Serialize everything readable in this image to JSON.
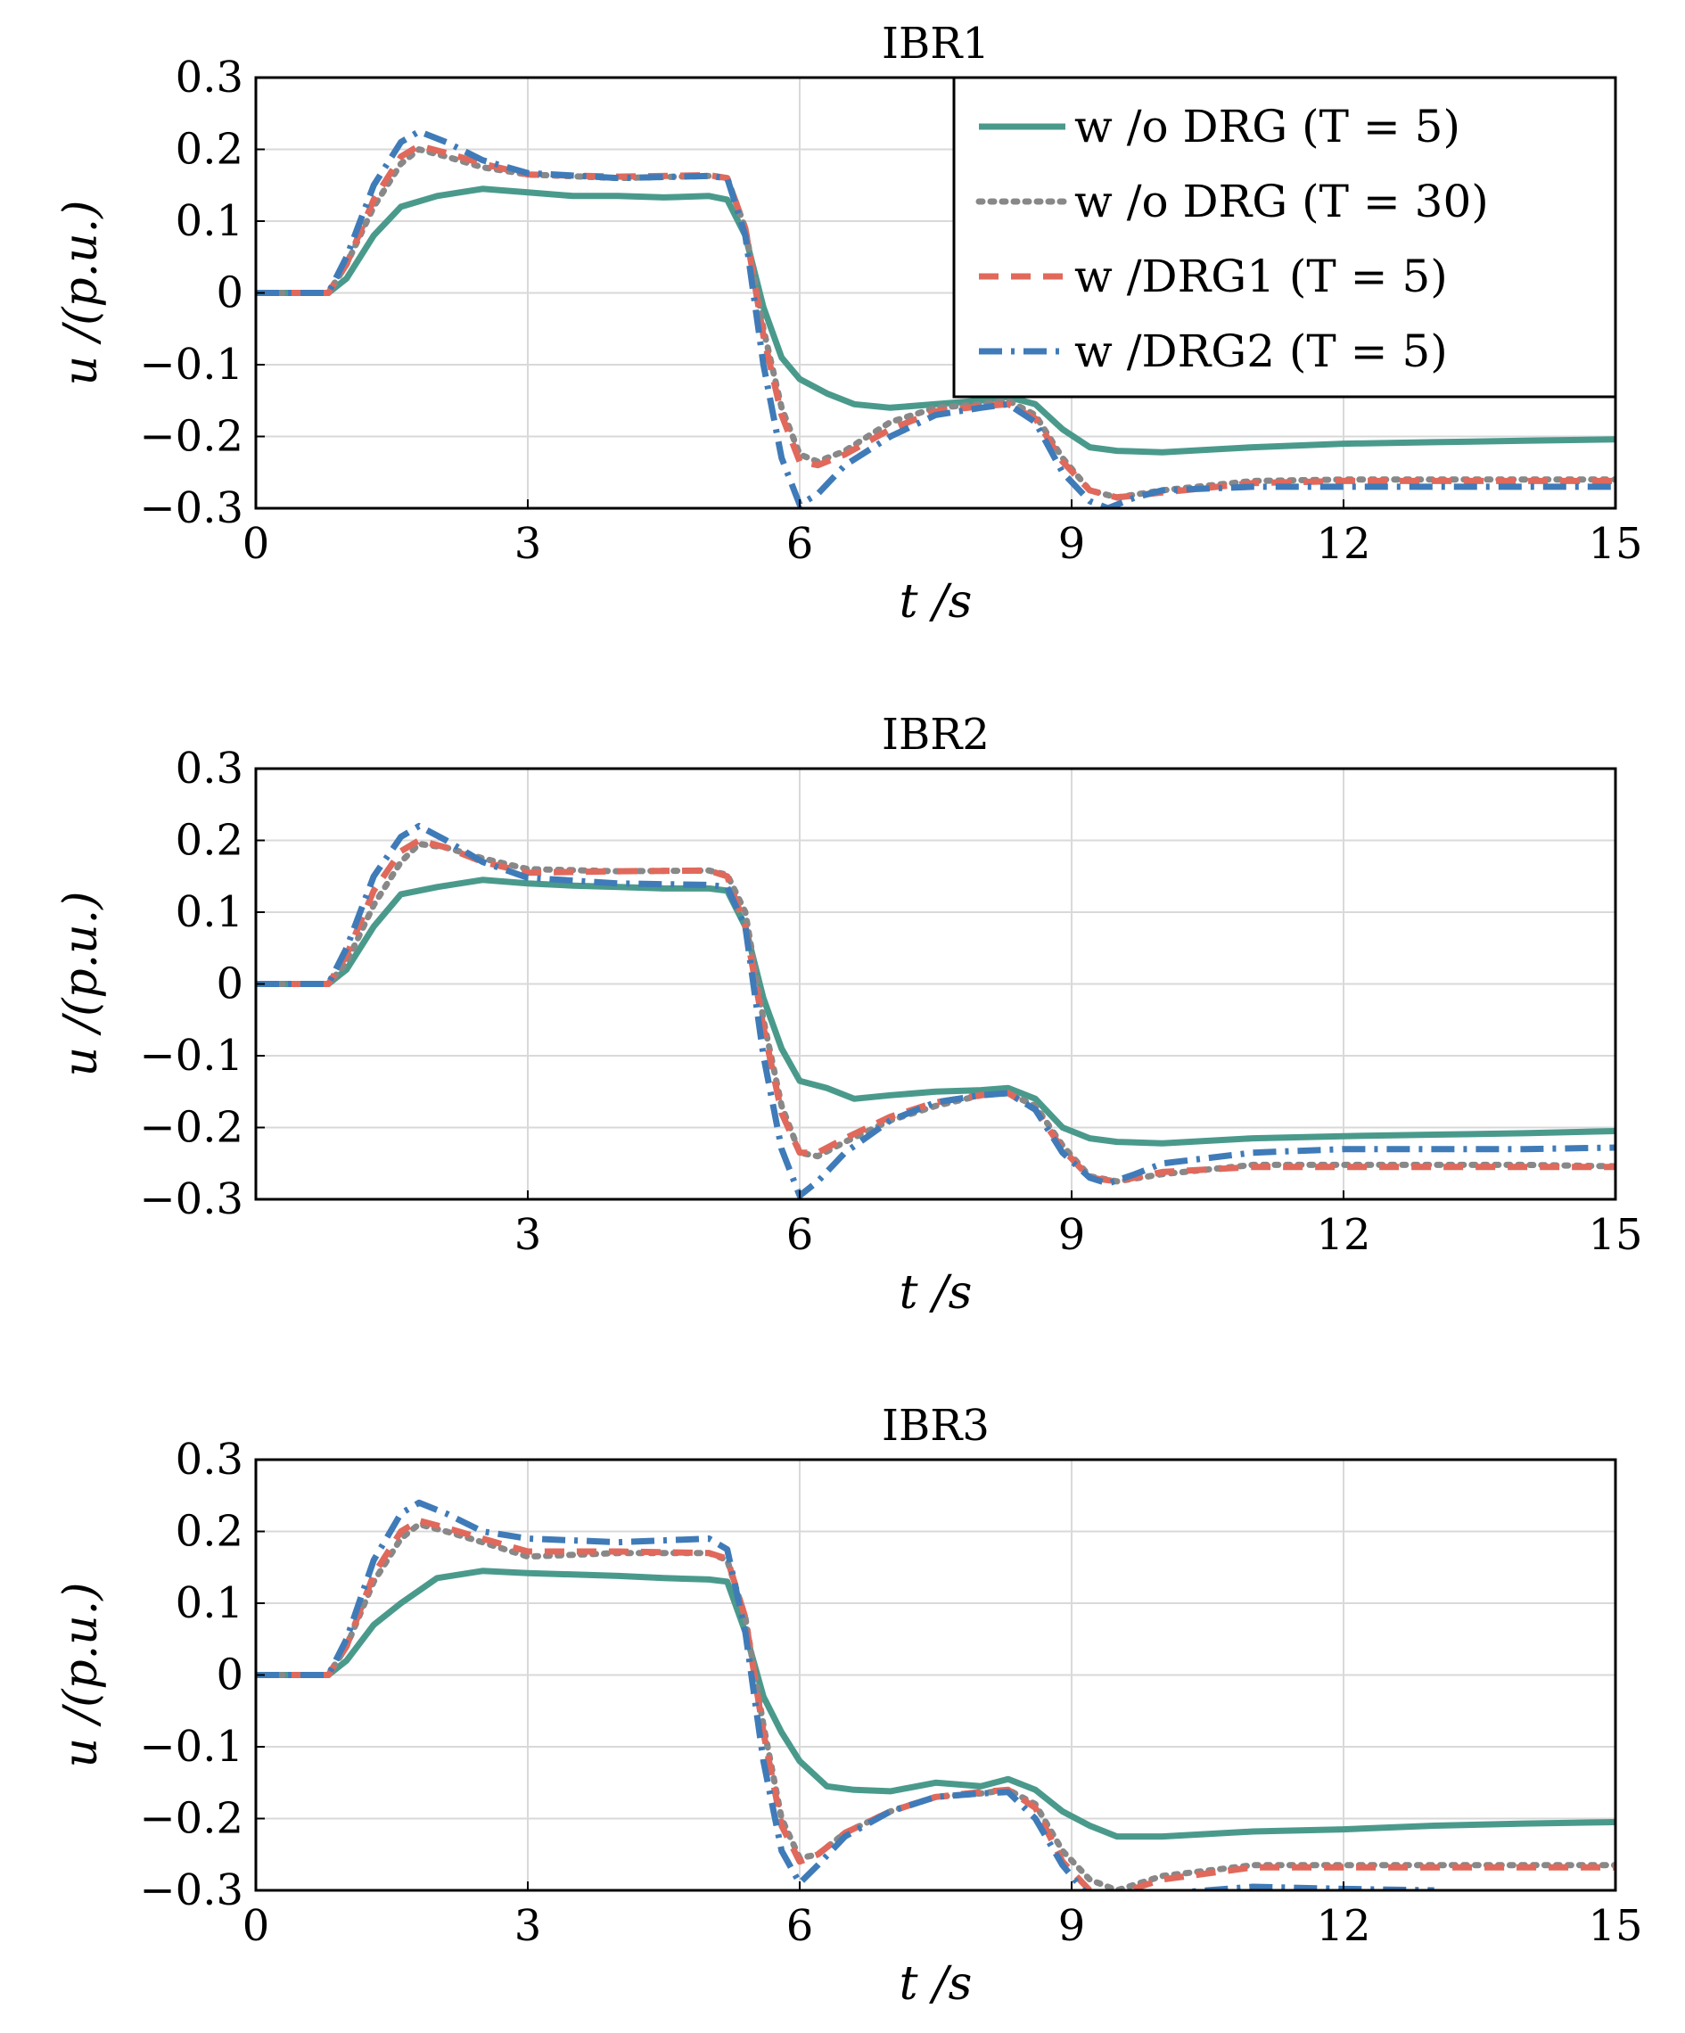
{
  "legend": {
    "items": [
      {
        "label": "w /o DRG (T = 5)",
        "color": "#4a9a8c",
        "style": "solid"
      },
      {
        "label": "w /o DRG (T = 30)",
        "color": "#888888",
        "style": "dotted"
      },
      {
        "label": "w /DRG1 (T = 5)",
        "color": "#e0695c",
        "style": "dashed"
      },
      {
        "label": "w /DRG2 (T = 5)",
        "color": "#3f7bb8",
        "style": "dashdot"
      }
    ],
    "placement": "top-right of first panel"
  },
  "chart_data": [
    {
      "type": "line",
      "title": "IBR1",
      "xlabel": "t /s",
      "ylabel": "u /(p.u.)",
      "xlim": [
        0,
        15
      ],
      "ylim": [
        -0.3,
        0.3
      ],
      "xticks": [
        "0",
        "3",
        "6",
        "9",
        "12",
        "15"
      ],
      "yticks": [
        "0.3",
        "0.2",
        "0.1",
        "0",
        "−0.1",
        "−0.2",
        "−0.3"
      ],
      "grid": true,
      "series": [
        {
          "name": "w /o DRG (T = 5)",
          "color": "#4a9a8c",
          "style": "solid",
          "x": [
            0,
            0.8,
            1.0,
            1.3,
            1.6,
            2.0,
            2.5,
            3.0,
            3.5,
            4.0,
            4.5,
            5.0,
            5.2,
            5.4,
            5.6,
            5.8,
            6.0,
            6.3,
            6.6,
            7.0,
            7.5,
            8.0,
            8.3,
            8.6,
            8.9,
            9.2,
            9.5,
            10.0,
            11.0,
            12.0,
            13.0,
            14.0,
            15.0
          ],
          "y": [
            0,
            0,
            0.02,
            0.08,
            0.12,
            0.135,
            0.145,
            0.14,
            0.135,
            0.135,
            0.133,
            0.135,
            0.13,
            0.08,
            -0.02,
            -0.09,
            -0.12,
            -0.14,
            -0.155,
            -0.16,
            -0.155,
            -0.15,
            -0.145,
            -0.155,
            -0.19,
            -0.215,
            -0.22,
            -0.222,
            -0.215,
            -0.21,
            -0.208,
            -0.206,
            -0.204
          ]
        },
        {
          "name": "w /o DRG (T = 30)",
          "color": "#888888",
          "style": "dotted",
          "x": [
            0,
            0.8,
            1.0,
            1.3,
            1.6,
            1.8,
            2.1,
            2.5,
            3.0,
            4.0,
            5.0,
            5.2,
            5.4,
            5.6,
            5.8,
            6.0,
            6.2,
            6.5,
            7.0,
            7.5,
            8.0,
            8.3,
            8.6,
            8.9,
            9.2,
            9.5,
            10.0,
            11.0,
            12.0,
            13.0,
            14.0,
            15.0
          ],
          "y": [
            0,
            0,
            0.04,
            0.12,
            0.18,
            0.2,
            0.19,
            0.175,
            0.165,
            0.16,
            0.163,
            0.16,
            0.09,
            -0.05,
            -0.16,
            -0.225,
            -0.235,
            -0.22,
            -0.18,
            -0.16,
            -0.155,
            -0.15,
            -0.17,
            -0.23,
            -0.275,
            -0.285,
            -0.275,
            -0.262,
            -0.26,
            -0.26,
            -0.26,
            -0.26
          ]
        },
        {
          "name": "w /DRG1 (T = 5)",
          "color": "#e0695c",
          "style": "dashed",
          "x": [
            0,
            0.8,
            1.0,
            1.3,
            1.6,
            1.8,
            2.1,
            2.5,
            3.0,
            4.0,
            5.0,
            5.2,
            5.4,
            5.6,
            5.8,
            6.0,
            6.2,
            6.5,
            7.0,
            7.5,
            8.0,
            8.3,
            8.6,
            8.9,
            9.2,
            9.5,
            10.0,
            11.0,
            12.0,
            13.0,
            14.0,
            15.0
          ],
          "y": [
            0,
            0,
            0.04,
            0.13,
            0.19,
            0.205,
            0.195,
            0.18,
            0.165,
            0.162,
            0.164,
            0.16,
            0.09,
            -0.06,
            -0.17,
            -0.235,
            -0.24,
            -0.225,
            -0.19,
            -0.165,
            -0.158,
            -0.155,
            -0.175,
            -0.235,
            -0.275,
            -0.285,
            -0.278,
            -0.265,
            -0.262,
            -0.262,
            -0.262,
            -0.262
          ]
        },
        {
          "name": "w /DRG2 (T = 5)",
          "color": "#3f7bb8",
          "style": "dashdot",
          "x": [
            0,
            0.8,
            1.0,
            1.3,
            1.6,
            1.8,
            2.1,
            2.5,
            3.0,
            4.0,
            5.0,
            5.2,
            5.4,
            5.6,
            5.8,
            6.0,
            6.2,
            6.5,
            7.0,
            7.5,
            8.0,
            8.3,
            8.6,
            8.9,
            9.2,
            9.4,
            9.7,
            10.0,
            11.0,
            12.0,
            13.0,
            14.0,
            15.0
          ],
          "y": [
            0,
            0,
            0.05,
            0.15,
            0.21,
            0.225,
            0.21,
            0.185,
            0.167,
            0.16,
            0.163,
            0.16,
            0.08,
            -0.1,
            -0.23,
            -0.295,
            -0.28,
            -0.24,
            -0.2,
            -0.17,
            -0.16,
            -0.155,
            -0.18,
            -0.25,
            -0.29,
            -0.3,
            -0.285,
            -0.275,
            -0.27,
            -0.27,
            -0.27,
            -0.27,
            -0.27
          ]
        }
      ]
    },
    {
      "type": "line",
      "title": "IBR2",
      "xlabel": "t /s",
      "ylabel": "u /(p.u.)",
      "xlim": [
        0,
        15
      ],
      "ylim": [
        -0.3,
        0.3
      ],
      "xticks": [
        "3",
        "6",
        "9",
        "12",
        "15"
      ],
      "yticks": [
        "0.3",
        "0.2",
        "0.1",
        "0",
        "−0.1",
        "−0.2",
        "−0.3"
      ],
      "grid": true,
      "series": [
        {
          "name": "w /o DRG (T = 5)",
          "color": "#4a9a8c",
          "style": "solid",
          "x": [
            0,
            0.8,
            1.0,
            1.3,
            1.6,
            2.0,
            2.5,
            3.0,
            3.5,
            4.0,
            4.5,
            5.0,
            5.2,
            5.4,
            5.6,
            5.8,
            6.0,
            6.3,
            6.6,
            7.0,
            7.5,
            8.0,
            8.3,
            8.6,
            8.9,
            9.2,
            9.5,
            10.0,
            11.0,
            12.0,
            13.0,
            14.0,
            15.0
          ],
          "y": [
            0,
            0,
            0.02,
            0.08,
            0.125,
            0.135,
            0.145,
            0.14,
            0.137,
            0.135,
            0.133,
            0.133,
            0.13,
            0.08,
            -0.02,
            -0.09,
            -0.135,
            -0.145,
            -0.16,
            -0.155,
            -0.15,
            -0.148,
            -0.145,
            -0.16,
            -0.2,
            -0.215,
            -0.22,
            -0.222,
            -0.215,
            -0.212,
            -0.21,
            -0.208,
            -0.205
          ]
        },
        {
          "name": "w /o DRG (T = 30)",
          "color": "#888888",
          "style": "dotted",
          "x": [
            0,
            0.8,
            1.0,
            1.3,
            1.6,
            1.8,
            2.1,
            2.5,
            3.0,
            4.0,
            5.0,
            5.2,
            5.4,
            5.6,
            5.8,
            6.0,
            6.2,
            6.5,
            7.0,
            7.5,
            8.0,
            8.3,
            8.6,
            8.9,
            9.2,
            9.5,
            10.0,
            11.0,
            12.0,
            13.0,
            14.0,
            15.0
          ],
          "y": [
            0,
            0,
            0.03,
            0.11,
            0.17,
            0.195,
            0.19,
            0.175,
            0.16,
            0.157,
            0.158,
            0.152,
            0.1,
            -0.05,
            -0.17,
            -0.235,
            -0.24,
            -0.22,
            -0.19,
            -0.17,
            -0.155,
            -0.152,
            -0.17,
            -0.225,
            -0.268,
            -0.275,
            -0.265,
            -0.252,
            -0.252,
            -0.252,
            -0.252,
            -0.254
          ]
        },
        {
          "name": "w /DRG1 (T = 5)",
          "color": "#e0695c",
          "style": "dashed",
          "x": [
            0,
            0.8,
            1.0,
            1.3,
            1.6,
            1.8,
            2.1,
            2.5,
            3.0,
            4.0,
            5.0,
            5.2,
            5.4,
            5.6,
            5.8,
            6.0,
            6.2,
            6.5,
            7.0,
            7.5,
            8.0,
            8.3,
            8.6,
            8.9,
            9.2,
            9.5,
            10.0,
            11.0,
            12.0,
            13.0,
            14.0,
            15.0
          ],
          "y": [
            0,
            0,
            0.04,
            0.13,
            0.185,
            0.2,
            0.19,
            0.17,
            0.155,
            0.157,
            0.158,
            0.15,
            0.08,
            -0.06,
            -0.18,
            -0.235,
            -0.235,
            -0.215,
            -0.185,
            -0.165,
            -0.155,
            -0.152,
            -0.175,
            -0.23,
            -0.27,
            -0.275,
            -0.262,
            -0.255,
            -0.255,
            -0.255,
            -0.255,
            -0.255
          ]
        },
        {
          "name": "w /DRG2 (T = 5)",
          "color": "#3f7bb8",
          "style": "dashdot",
          "x": [
            0,
            0.8,
            1.0,
            1.3,
            1.6,
            1.8,
            2.1,
            2.5,
            3.0,
            4.0,
            5.0,
            5.2,
            5.4,
            5.6,
            5.8,
            6.0,
            6.2,
            6.5,
            7.0,
            7.5,
            8.0,
            8.3,
            8.6,
            8.9,
            9.2,
            9.4,
            9.7,
            10.0,
            11.0,
            12.0,
            13.0,
            14.0,
            15.0
          ],
          "y": [
            0,
            0,
            0.05,
            0.15,
            0.205,
            0.22,
            0.2,
            0.17,
            0.148,
            0.14,
            0.138,
            0.135,
            0.08,
            -0.1,
            -0.23,
            -0.295,
            -0.275,
            -0.235,
            -0.19,
            -0.165,
            -0.155,
            -0.152,
            -0.175,
            -0.235,
            -0.27,
            -0.278,
            -0.265,
            -0.25,
            -0.235,
            -0.23,
            -0.23,
            -0.23,
            -0.228
          ]
        }
      ]
    },
    {
      "type": "line",
      "title": "IBR3",
      "xlabel": "t /s",
      "ylabel": "u /(p.u.)",
      "xlim": [
        0,
        15
      ],
      "ylim": [
        -0.3,
        0.3
      ],
      "xticks": [
        "0",
        "3",
        "6",
        "9",
        "12",
        "15"
      ],
      "yticks": [
        "0.3",
        "0.2",
        "0.1",
        "0",
        "−0.1",
        "−0.2",
        "−0.3"
      ],
      "grid": true,
      "series": [
        {
          "name": "w /o DRG (T = 5)",
          "color": "#4a9a8c",
          "style": "solid",
          "x": [
            0,
            0.8,
            1.0,
            1.3,
            1.6,
            2.0,
            2.5,
            3.0,
            3.5,
            4.0,
            4.5,
            5.0,
            5.2,
            5.4,
            5.6,
            5.8,
            6.0,
            6.3,
            6.6,
            7.0,
            7.5,
            8.0,
            8.3,
            8.6,
            8.9,
            9.2,
            9.5,
            10.0,
            11.0,
            12.0,
            13.0,
            14.0,
            15.0
          ],
          "y": [
            0,
            0,
            0.02,
            0.07,
            0.1,
            0.135,
            0.145,
            0.142,
            0.14,
            0.138,
            0.135,
            0.133,
            0.13,
            0.06,
            -0.03,
            -0.08,
            -0.12,
            -0.155,
            -0.16,
            -0.162,
            -0.15,
            -0.155,
            -0.145,
            -0.16,
            -0.19,
            -0.21,
            -0.225,
            -0.225,
            -0.218,
            -0.215,
            -0.21,
            -0.207,
            -0.205
          ]
        },
        {
          "name": "w /o DRG (T = 30)",
          "color": "#888888",
          "style": "dotted",
          "x": [
            0,
            0.8,
            1.0,
            1.3,
            1.6,
            1.8,
            2.1,
            2.5,
            3.0,
            4.0,
            5.0,
            5.2,
            5.4,
            5.6,
            5.8,
            6.0,
            6.2,
            6.5,
            7.0,
            7.5,
            8.0,
            8.3,
            8.6,
            8.9,
            9.2,
            9.5,
            10.0,
            11.0,
            12.0,
            13.0,
            14.0,
            15.0
          ],
          "y": [
            0,
            0,
            0.04,
            0.13,
            0.19,
            0.21,
            0.2,
            0.185,
            0.165,
            0.17,
            0.17,
            0.16,
            0.08,
            -0.07,
            -0.2,
            -0.255,
            -0.25,
            -0.22,
            -0.19,
            -0.17,
            -0.165,
            -0.16,
            -0.18,
            -0.245,
            -0.285,
            -0.3,
            -0.28,
            -0.265,
            -0.265,
            -0.265,
            -0.265,
            -0.265
          ]
        },
        {
          "name": "w /DRG1 (T = 5)",
          "color": "#e0695c",
          "style": "dashed",
          "x": [
            0,
            0.8,
            1.0,
            1.3,
            1.6,
            1.8,
            2.1,
            2.5,
            3.0,
            4.0,
            5.0,
            5.2,
            5.4,
            5.6,
            5.8,
            6.0,
            6.2,
            6.5,
            7.0,
            7.5,
            8.0,
            8.3,
            8.6,
            8.9,
            9.2,
            9.5,
            10.0,
            11.0,
            12.0,
            13.0,
            14.0,
            15.0
          ],
          "y": [
            0,
            0,
            0.04,
            0.14,
            0.2,
            0.215,
            0.205,
            0.19,
            0.172,
            0.172,
            0.17,
            0.162,
            0.08,
            -0.08,
            -0.21,
            -0.26,
            -0.25,
            -0.22,
            -0.19,
            -0.17,
            -0.163,
            -0.16,
            -0.185,
            -0.26,
            -0.3,
            -0.305,
            -0.285,
            -0.268,
            -0.268,
            -0.268,
            -0.268,
            -0.268
          ]
        },
        {
          "name": "w /DRG2 (T = 5)",
          "color": "#3f7bb8",
          "style": "dashdot",
          "x": [
            0,
            0.8,
            1.0,
            1.3,
            1.6,
            1.8,
            2.1,
            2.5,
            3.0,
            4.0,
            5.0,
            5.2,
            5.4,
            5.6,
            5.8,
            6.0,
            6.2,
            6.5,
            7.0,
            7.5,
            8.0,
            8.3,
            8.6,
            8.9,
            9.2,
            9.5,
            10.0,
            11.0,
            12.0,
            13.0
          ],
          "y": [
            0,
            0,
            0.05,
            0.16,
            0.225,
            0.24,
            0.225,
            0.2,
            0.19,
            0.185,
            0.19,
            0.175,
            0.06,
            -0.12,
            -0.245,
            -0.29,
            -0.265,
            -0.225,
            -0.19,
            -0.17,
            -0.165,
            -0.163,
            -0.2,
            -0.265,
            -0.31,
            -0.33,
            -0.305,
            -0.295,
            -0.298,
            -0.3
          ]
        }
      ]
    }
  ]
}
